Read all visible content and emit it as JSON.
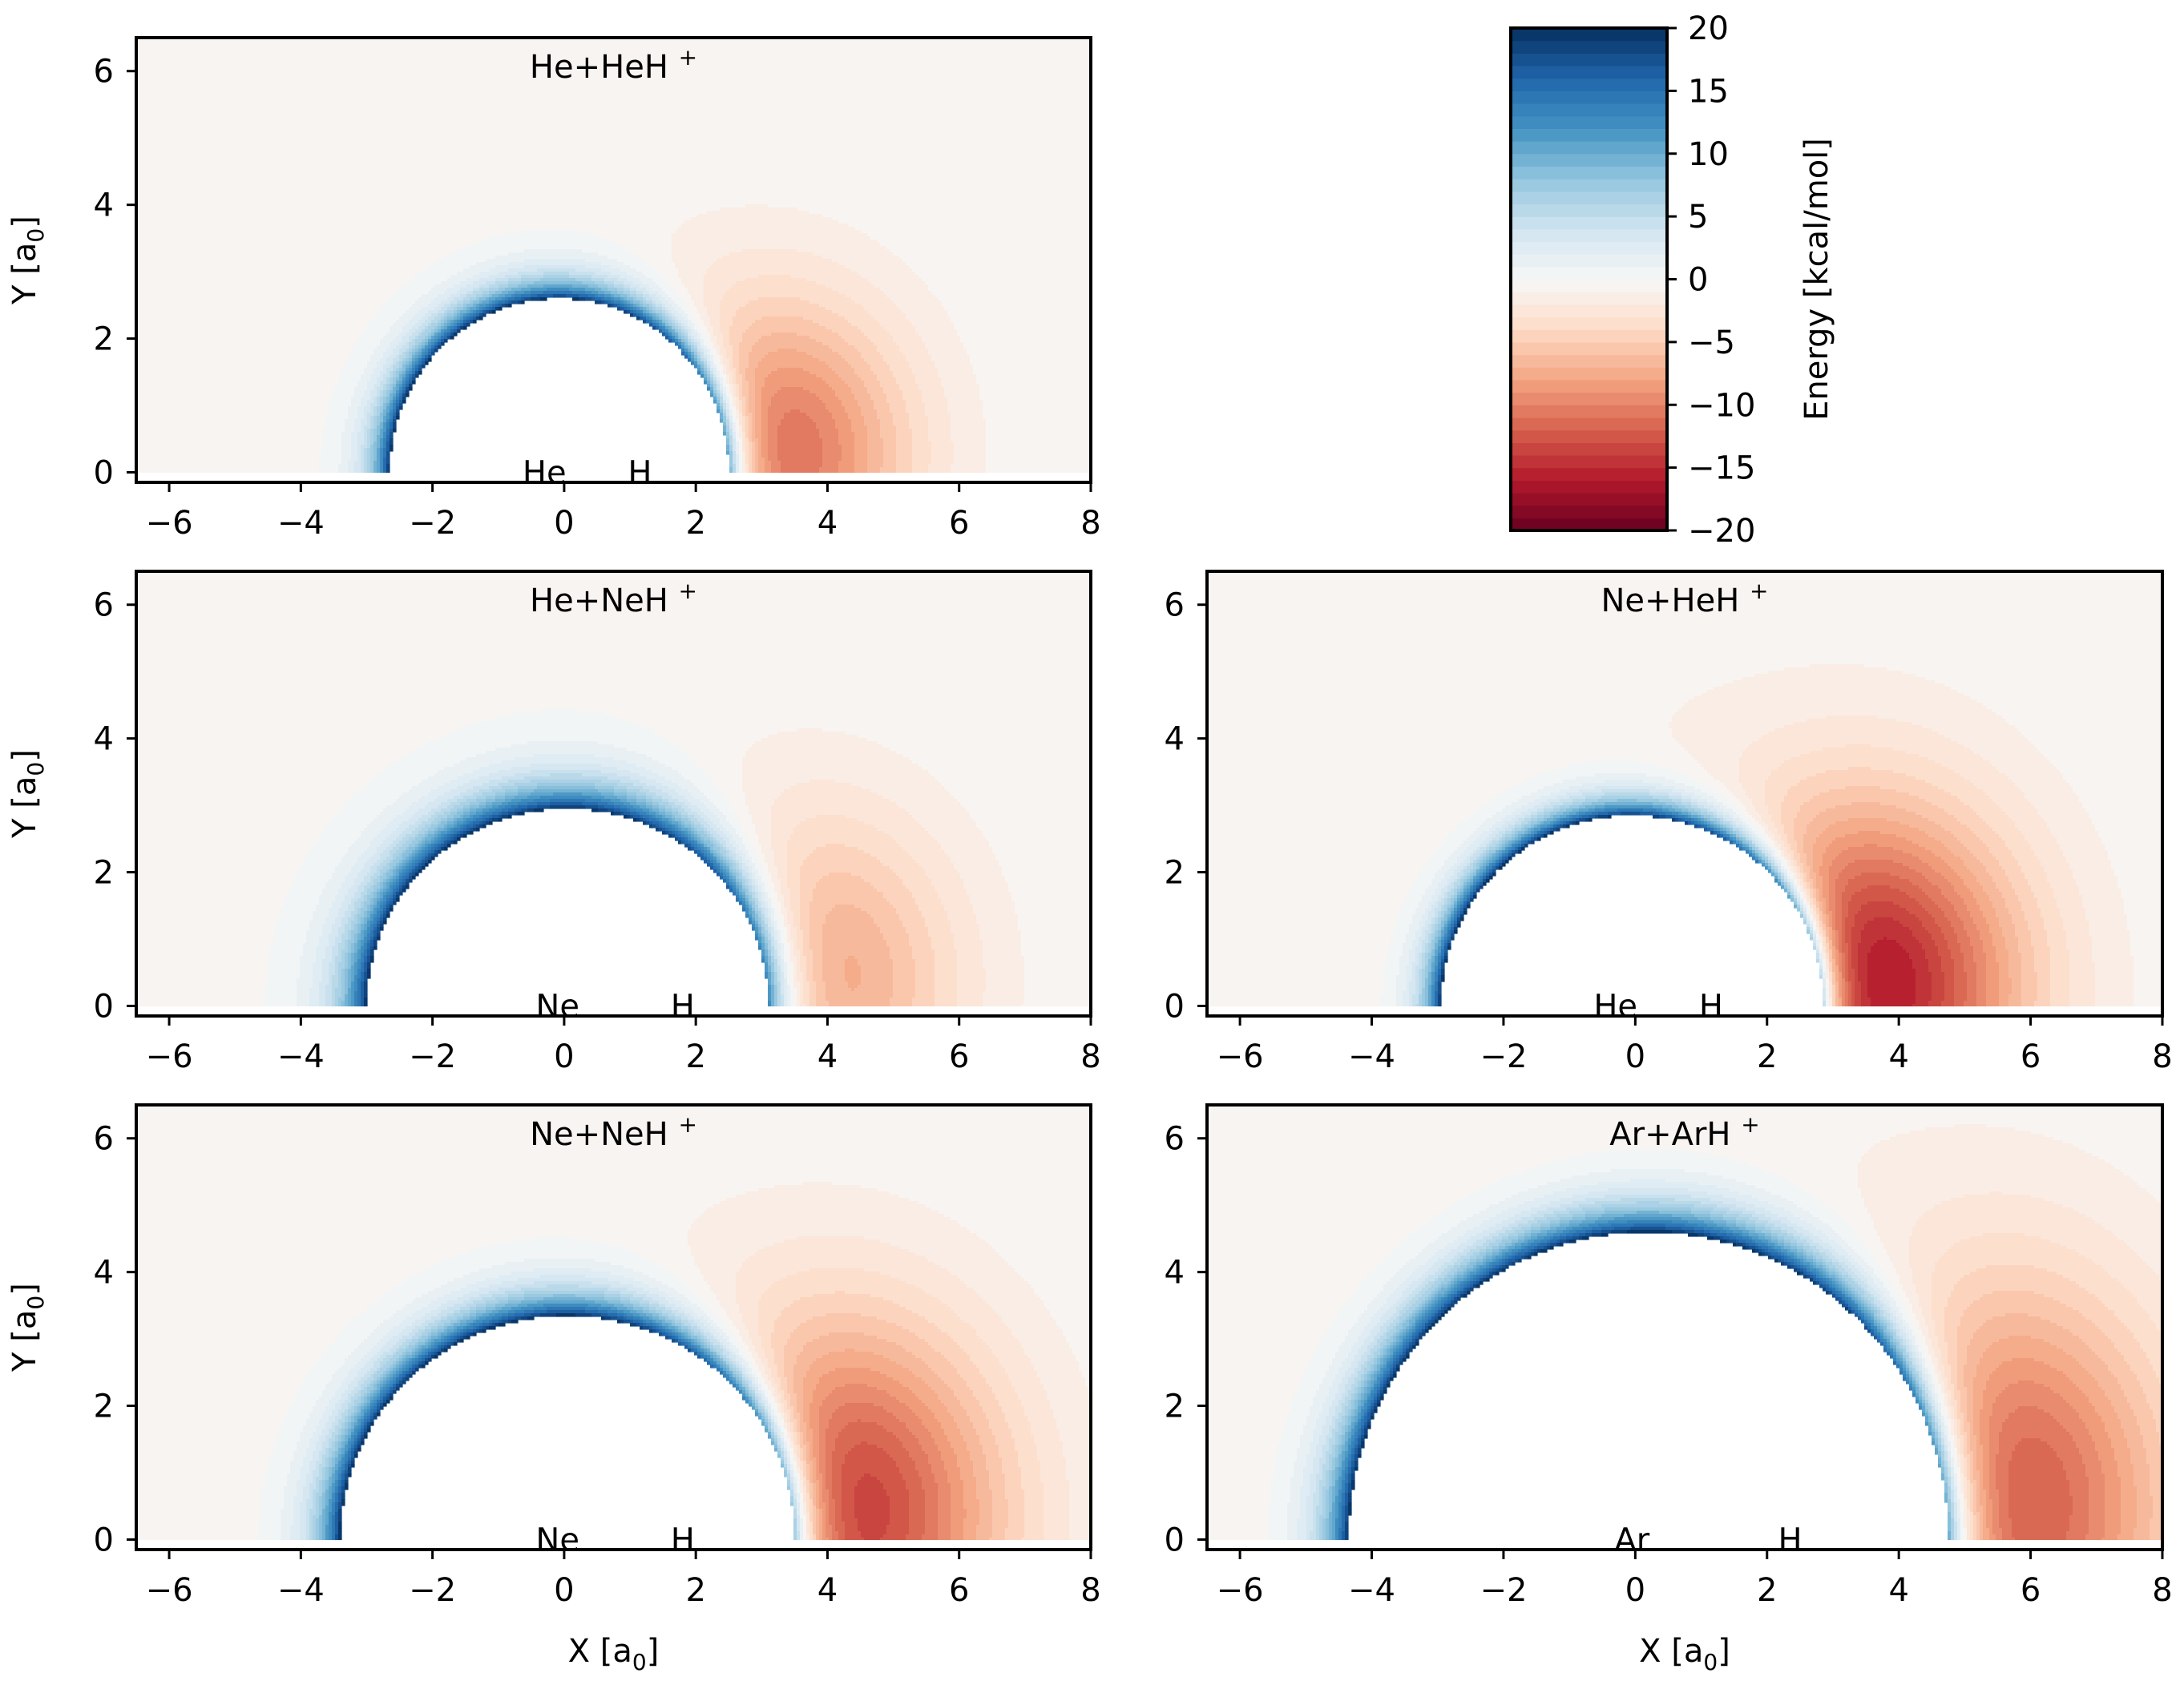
{
  "chart_data": [
    {
      "type": "heatmap",
      "title": "He+HeH⁺",
      "xlabel": "",
      "ylabel": "Y [a₀]",
      "xlim": [
        -6.5,
        8
      ],
      "ylim": [
        -0.15,
        6.5
      ],
      "xticks": [
        "−6",
        "−4",
        "−2",
        "0",
        "2",
        "4",
        "6",
        "8"
      ],
      "yticks": [
        "0",
        "2",
        "4",
        "6"
      ],
      "atoms": [
        {
          "label": "He",
          "x": -0.3
        },
        {
          "label": "H",
          "x": 1.15
        }
      ],
      "core": {
        "left": -2.65,
        "right": 2.5,
        "height": 2.6
      },
      "repulsive_shell_extent": 0.75,
      "well": {
        "x": 3.2,
        "y": 0.3,
        "min_energy": -11,
        "rx": 2.0,
        "ry": 2.2
      },
      "outer_attraction": {
        "min_energy": -1.2,
        "extent": 2.0
      }
    },
    {
      "type": "heatmap",
      "title": "He+NeH⁺",
      "xlabel": "",
      "ylabel": "Y [a₀]",
      "xlim": [
        -6.5,
        8
      ],
      "ylim": [
        -0.15,
        6.5
      ],
      "xticks": [
        "−6",
        "−4",
        "−2",
        "0",
        "2",
        "4",
        "6",
        "8"
      ],
      "yticks": [
        "0",
        "2",
        "4",
        "6"
      ],
      "atoms": [
        {
          "label": "Ne",
          "x": -0.1
        },
        {
          "label": "H",
          "x": 1.8
        }
      ],
      "core": {
        "left": -3.0,
        "right": 3.1,
        "height": 2.95
      },
      "repulsive_shell_extent": 1.0,
      "well": {
        "x": 3.8,
        "y": 0.4,
        "min_energy": -8,
        "rx": 2.1,
        "ry": 2.4
      },
      "outer_attraction": {
        "min_energy": -1.0,
        "extent": 2.3
      }
    },
    {
      "type": "heatmap",
      "title": "Ne+HeH⁺",
      "xlabel": "",
      "ylabel": "",
      "xlim": [
        -6.5,
        8
      ],
      "ylim": [
        -0.15,
        6.5
      ],
      "xticks": [
        "−6",
        "−4",
        "−2",
        "0",
        "2",
        "4",
        "6",
        "8"
      ],
      "yticks": [
        "0",
        "2",
        "4",
        "6"
      ],
      "atoms": [
        {
          "label": "He",
          "x": -0.3
        },
        {
          "label": "H",
          "x": 1.15
        }
      ],
      "core": {
        "left": -2.95,
        "right": 2.85,
        "height": 2.85
      },
      "repulsive_shell_extent": 0.7,
      "well": {
        "x": 3.5,
        "y": 0.3,
        "min_energy": -16,
        "rx": 2.3,
        "ry": 2.6
      },
      "outer_attraction": {
        "min_energy": -1.5,
        "extent": 2.8
      }
    },
    {
      "type": "heatmap",
      "title": "Ne+NeH⁺",
      "xlabel": "X [a₀]",
      "ylabel": "Y [a₀]",
      "xlim": [
        -6.5,
        8
      ],
      "ylim": [
        -0.15,
        6.5
      ],
      "xticks": [
        "−6",
        "−4",
        "−2",
        "0",
        "2",
        "4",
        "6",
        "8"
      ],
      "yticks": [
        "0",
        "2",
        "4",
        "6"
      ],
      "atoms": [
        {
          "label": "Ne",
          "x": -0.1
        },
        {
          "label": "H",
          "x": 1.8
        }
      ],
      "core": {
        "left": -3.4,
        "right": 3.5,
        "height": 3.35
      },
      "repulsive_shell_extent": 0.9,
      "well": {
        "x": 4.2,
        "y": 0.4,
        "min_energy": -14,
        "rx": 2.4,
        "ry": 2.8
      },
      "outer_attraction": {
        "min_energy": -1.3,
        "extent": 2.6
      }
    },
    {
      "type": "heatmap",
      "title": "Ar+ArH⁺",
      "xlabel": "X [a₀]",
      "ylabel": "",
      "xlim": [
        -6.5,
        8
      ],
      "ylim": [
        -0.15,
        6.5
      ],
      "xticks": [
        "−6",
        "−4",
        "−2",
        "0",
        "2",
        "4",
        "6",
        "8"
      ],
      "yticks": [
        "0",
        "2",
        "4",
        "6"
      ],
      "atoms": [
        {
          "label": "Ar",
          "x": -0.05
        },
        {
          "label": "H",
          "x": 2.35
        }
      ],
      "core": {
        "left": -4.35,
        "right": 4.75,
        "height": 4.6
      },
      "repulsive_shell_extent": 1.0,
      "well": {
        "x": 5.7,
        "y": 0.5,
        "min_energy": -12,
        "rx": 2.4,
        "ry": 3.2
      },
      "outer_attraction": {
        "min_energy": -1.6,
        "extent": 3.0
      }
    }
  ],
  "colorbar": {
    "label": "Energy [kcal/mol]",
    "range": [
      -20,
      20
    ],
    "ticks": [
      "20",
      "15",
      "10",
      "5",
      "0",
      "−5",
      "−10",
      "−15",
      "−20"
    ],
    "tick_values": [
      20,
      15,
      10,
      5,
      0,
      -5,
      -10,
      -15,
      -20
    ],
    "levels": 40,
    "colormap": "RdBu",
    "stops": [
      "#67001f",
      "#b2182b",
      "#d6604d",
      "#f4a582",
      "#fddbc7",
      "#f7f7f7",
      "#d1e5f0",
      "#92c5de",
      "#4393c3",
      "#2166ac",
      "#053061"
    ]
  }
}
